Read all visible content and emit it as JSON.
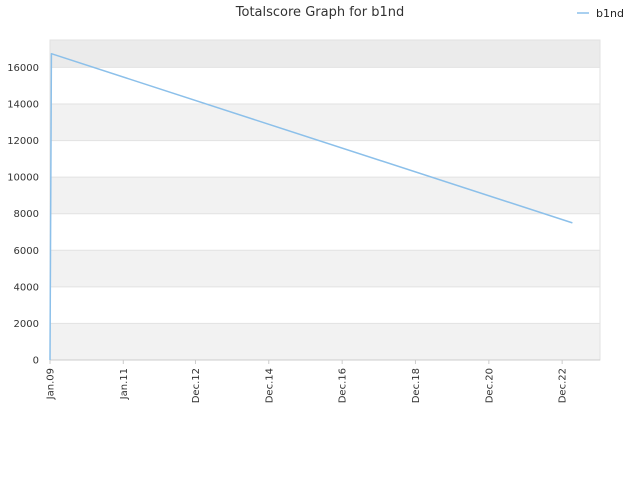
{
  "chart_data": {
    "type": "line",
    "title": "Totalscore Graph for b1nd",
    "xlabel": "",
    "ylabel": "",
    "x_ticks": [
      "Jan.09",
      "Jan.11",
      "Dec.12",
      "Dec.14",
      "Dec.16",
      "Dec.18",
      "Dec.20",
      "Dec.22"
    ],
    "y_ticks": [
      "0",
      "2000",
      "4000",
      "6000",
      "8000",
      "10000",
      "12000",
      "14000",
      "16000"
    ],
    "ylim": [
      0,
      17500
    ],
    "xlim": [
      "2009-01-01",
      "2024-01-01"
    ],
    "grid": "horizontal bands",
    "legend_position": "top-right",
    "series": [
      {
        "name": "b1nd",
        "color": "#8cc0ea",
        "points": [
          {
            "x": "2009-01-01",
            "y": 0
          },
          {
            "x": "2009-01-15",
            "y": 16750
          },
          {
            "x": "2023-04-01",
            "y": 7500
          }
        ]
      }
    ]
  },
  "colors": {
    "band_light": "#f2f2f2",
    "band_top": "#ebebeb",
    "band_white": "#ffffff",
    "gridline": "#e2e2e2",
    "axis": "#cccccc"
  }
}
